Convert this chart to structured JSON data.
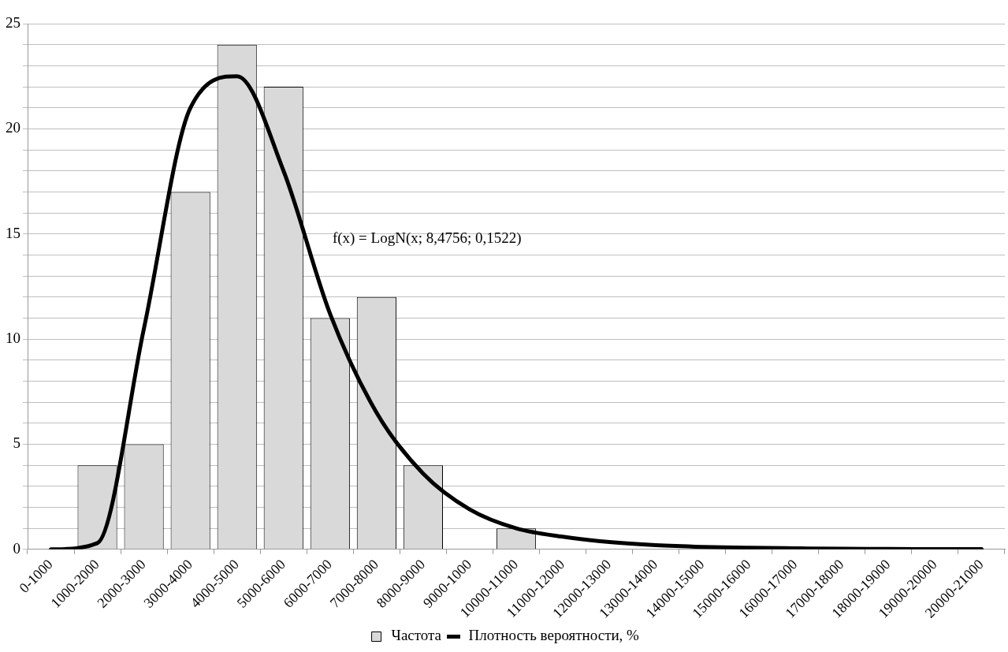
{
  "chart_data": {
    "type": "bar",
    "categories": [
      "0-1000",
      "1000-2000",
      "2000-3000",
      "3000-4000",
      "4000-5000",
      "5000-6000",
      "6000-7000",
      "7000-8000",
      "8000-9000",
      "9000-1000",
      "10000-11000",
      "11000-12000",
      "12000-13000",
      "13000-14000",
      "14000-15000",
      "15000-16000",
      "16000-17000",
      "17000-18000",
      "18000-19000",
      "19000-20000",
      "20000-21000"
    ],
    "series": [
      {
        "name": "Частота",
        "color": "#d9d9d9",
        "values": [
          0,
          4,
          5,
          17,
          24,
          22,
          11,
          12,
          4,
          0,
          1,
          0,
          0,
          0,
          0,
          0,
          0,
          0,
          0,
          0,
          0
        ]
      },
      {
        "name": "Плотность вероятности, %",
        "type": "line",
        "color": "#000000",
        "values": [
          0,
          0.3,
          10.5,
          21,
          22.5,
          18,
          11.2,
          6.5,
          3.6,
          1.9,
          1.0,
          0.6,
          0.35,
          0.2,
          0.12,
          0.08,
          0.05,
          0.03,
          0.02,
          0.01,
          0.01
        ]
      }
    ],
    "ylim": [
      0,
      25
    ],
    "yticks": [
      0,
      {
        "value": 1,
        "label": null
      },
      {
        "value": 2,
        "label": null
      },
      {
        "value": 3,
        "label": null
      },
      {
        "value": 4,
        "label": null
      },
      5,
      {
        "value": 6,
        "label": null
      },
      {
        "value": 7,
        "label": null
      },
      {
        "value": 8,
        "label": null
      },
      {
        "value": 9,
        "label": null
      },
      10,
      {
        "value": 11,
        "label": null
      },
      {
        "value": 12,
        "label": null
      },
      {
        "value": 13,
        "label": null
      },
      {
        "value": 14,
        "label": null
      },
      15,
      {
        "value": 16,
        "label": null
      },
      {
        "value": 17,
        "label": null
      },
      {
        "value": 18,
        "label": null
      },
      {
        "value": 19,
        "label": null
      },
      20,
      {
        "value": 21,
        "label": null
      },
      {
        "value": 22,
        "label": null
      },
      {
        "value": 23,
        "label": null
      },
      {
        "value": 24,
        "label": null
      },
      25
    ],
    "annotations": [
      "f(x) = LogN(x; 8,4756; 0,1522)"
    ],
    "grid": "y",
    "legend": "bottom",
    "marker": "none",
    "line_style": "solid"
  }
}
